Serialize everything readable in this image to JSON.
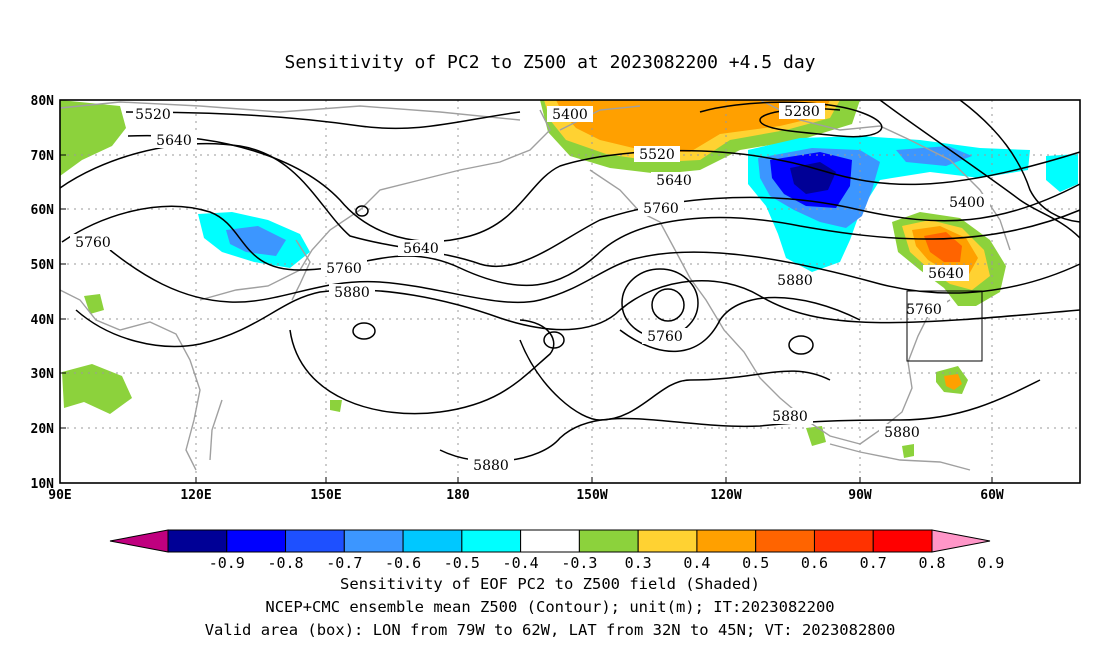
{
  "title": "Sensitivity of PC2 to Z500 at 2023082200 +4.5 day",
  "axes": {
    "lat_labels": [
      "80N",
      "70N",
      "60N",
      "50N",
      "40N",
      "30N",
      "20N",
      "10N"
    ],
    "lon_labels": [
      "90E",
      "120E",
      "150E",
      "180",
      "150W",
      "120W",
      "90W",
      "60W"
    ]
  },
  "contour_labels": [
    "5520",
    "5640",
    "5760",
    "5400",
    "5520",
    "5640",
    "5760",
    "5280",
    "5400",
    "5640",
    "5760",
    "5880",
    "5760",
    "5640",
    "5760",
    "5880",
    "5880",
    "5880",
    "5880"
  ],
  "colorbar": {
    "labels": [
      "-0.9",
      "-0.8",
      "-0.7",
      "-0.6",
      "-0.5",
      "-0.4",
      "-0.3",
      "0.3",
      "0.4",
      "0.5",
      "0.6",
      "0.7",
      "0.8",
      "0.9"
    ],
    "colors": [
      "#c0007f",
      "#000096",
      "#0000ff",
      "#1e50ff",
      "#3c96ff",
      "#00c8ff",
      "#00ffff",
      "#ffffff",
      "#8cd23c",
      "#ffd232",
      "#ffa000",
      "#ff6400",
      "#ff3200",
      "#ff0000",
      "#ff96c8"
    ]
  },
  "captions": [
    "Sensitivity of EOF PC2 to Z500 field (Shaded)",
    "NCEP+CMC ensemble mean Z500 (Contour); unit(m); IT:2023082200",
    "Valid area (box): LON from 79W to 62W, LAT from 32N to 45N; VT: 2023082800"
  ],
  "valid_area": {
    "lon_min": -79,
    "lon_max": -62,
    "lat_min": 32,
    "lat_max": 45
  },
  "colors": {
    "frame": "#000000",
    "coast": "#a0a0a0",
    "contour": "#000000",
    "grid": "#9a9a9a"
  }
}
